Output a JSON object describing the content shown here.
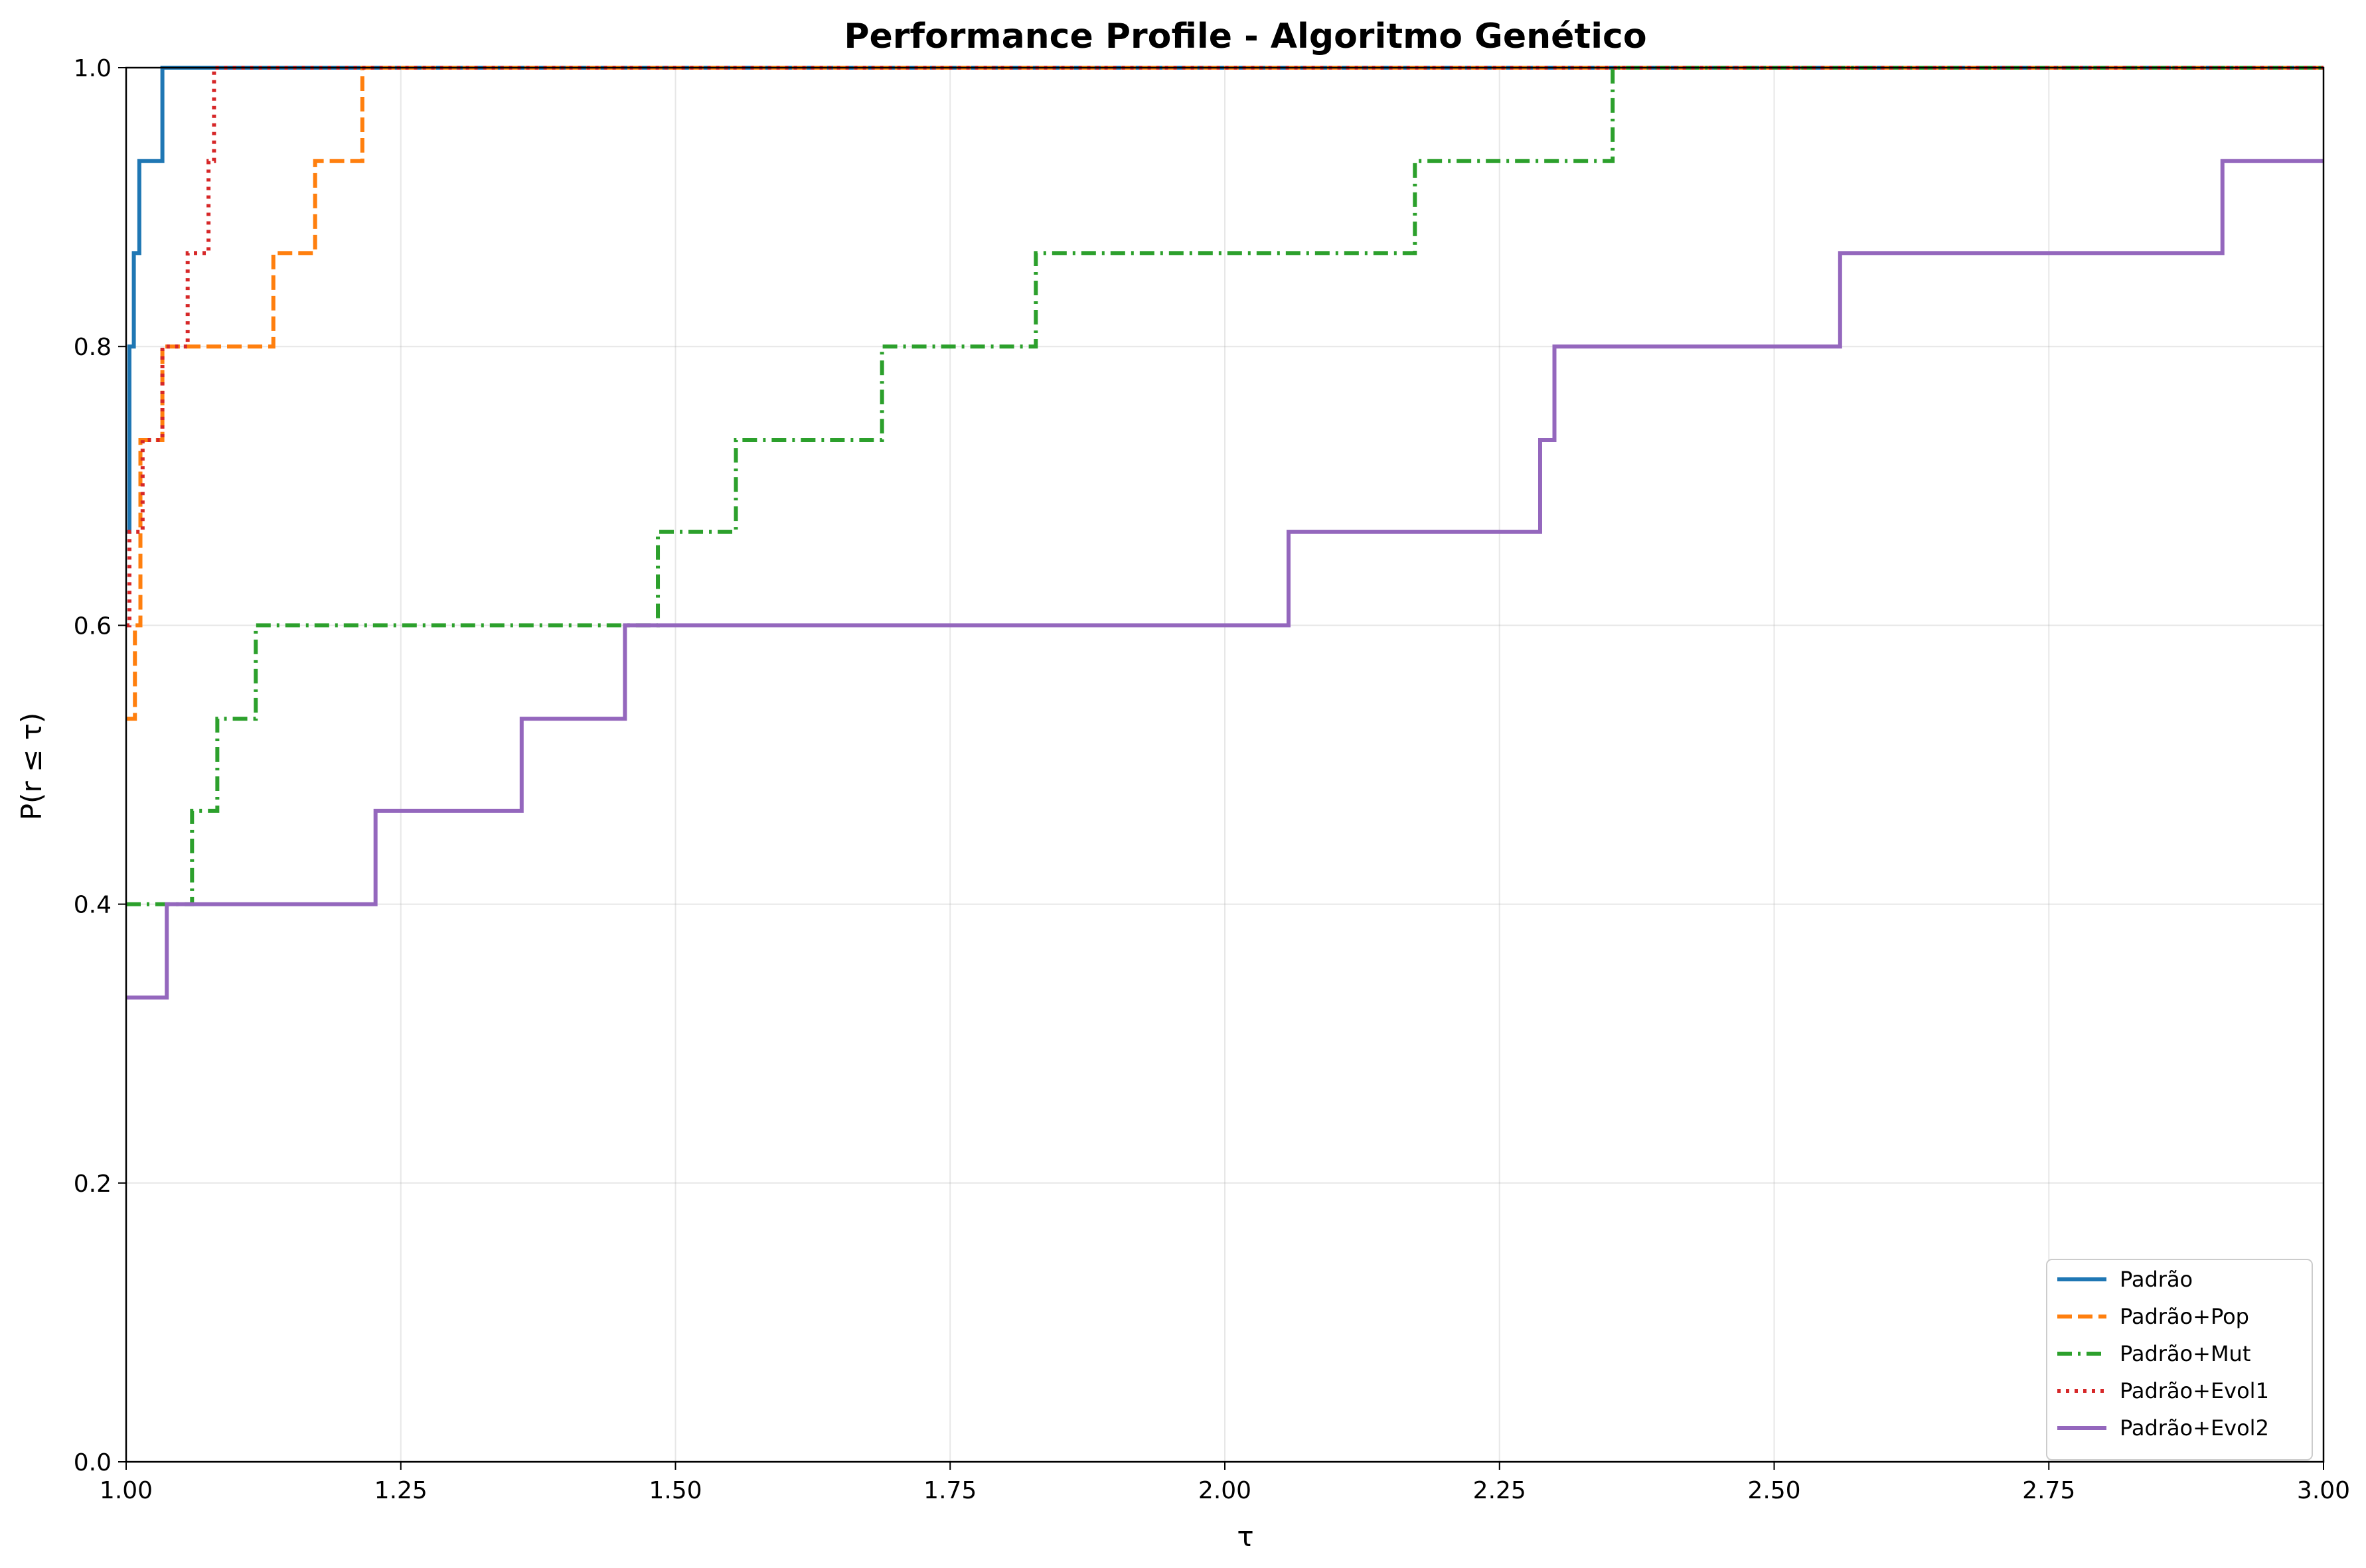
{
  "chart_data": {
    "type": "line",
    "step": "post",
    "title": "Performance Profile - Algoritmo Genético",
    "xlabel": "τ",
    "ylabel": "P(r ≤ τ)",
    "xlim": [
      1.0,
      3.0
    ],
    "ylim": [
      0.0,
      1.0
    ],
    "xticks": [
      "1.00",
      "1.25",
      "1.50",
      "1.75",
      "2.00",
      "2.25",
      "2.50",
      "2.75",
      "3.00"
    ],
    "yticks": [
      "0.0",
      "0.2",
      "0.4",
      "0.6",
      "0.8",
      "1.0"
    ],
    "grid": true,
    "legend_position": "lower-right",
    "series": [
      {
        "name": "Padrão",
        "color": "#1f77b4",
        "style": "solid",
        "x": [
          1.0,
          1.003,
          1.007,
          1.012,
          1.033,
          3.0
        ],
        "y": [
          0.667,
          0.8,
          0.867,
          0.933,
          1.0,
          1.0
        ]
      },
      {
        "name": "Padrão+Pop",
        "color": "#ff7f0e",
        "style": "dashed",
        "x": [
          1.0,
          1.008,
          1.013,
          1.022,
          1.033,
          1.134,
          1.172,
          1.215,
          3.0
        ],
        "y": [
          0.533,
          0.6,
          0.733,
          0.733,
          0.8,
          0.867,
          0.933,
          1.0,
          1.0
        ]
      },
      {
        "name": "Padrão+Mut",
        "color": "#2ca02c",
        "style": "dashdot",
        "x": [
          1.0,
          1.06,
          1.083,
          1.118,
          1.484,
          1.555,
          1.688,
          1.828,
          2.173,
          2.353,
          3.0
        ],
        "y": [
          0.4,
          0.467,
          0.533,
          0.6,
          0.667,
          0.733,
          0.8,
          0.867,
          0.933,
          1.0,
          1.0
        ]
      },
      {
        "name": "Padrão+Evol1",
        "color": "#d62728",
        "style": "dotted",
        "x": [
          1.0,
          1.003,
          1.01,
          1.015,
          1.033,
          1.056,
          1.075,
          1.08,
          3.0
        ],
        "y": [
          0.6,
          0.667,
          0.667,
          0.733,
          0.8,
          0.867,
          0.933,
          1.0,
          1.0
        ]
      },
      {
        "name": "Padrão+Evol2",
        "color": "#9467bd",
        "style": "solid",
        "x": [
          1.0,
          1.037,
          1.227,
          1.36,
          1.454,
          2.058,
          2.287,
          2.3,
          2.56,
          2.908,
          3.0
        ],
        "y": [
          0.333,
          0.4,
          0.467,
          0.533,
          0.6,
          0.667,
          0.733,
          0.8,
          0.867,
          0.933,
          0.933
        ]
      }
    ]
  }
}
